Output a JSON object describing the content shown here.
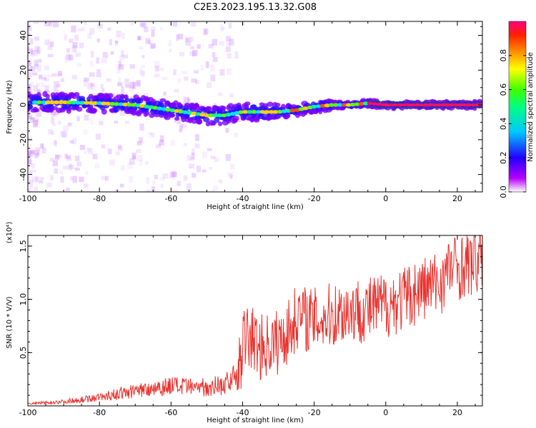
{
  "title": "C2E3.2023.195.13.32.G08",
  "chart_data": [
    {
      "type": "heatmap",
      "xlabel": "Height of straight line (km)",
      "ylabel": "Frequency (Hz)",
      "xlim": [
        -100,
        27
      ],
      "ylim": [
        -50,
        48
      ],
      "xticks": [
        "-100",
        "-80",
        "-60",
        "-40",
        "-20",
        "0",
        "20"
      ],
      "yticks": [
        "40",
        "20",
        "0",
        "-20",
        "-40"
      ],
      "trace": {
        "x": [
          -100,
          -90,
          -80,
          -70,
          -60,
          -50,
          -45,
          -40,
          -35,
          -30,
          -25,
          -20,
          -15,
          -10,
          -5,
          0,
          10,
          20,
          27
        ],
        "freq": [
          1.5,
          1.5,
          1,
          0,
          -3,
          -6,
          -6,
          -4,
          -4,
          -4,
          -3,
          -1,
          0,
          0,
          1,
          0,
          0,
          0,
          0
        ]
      },
      "colorbar": {
        "label": "Normalized spectral amplitude",
        "ticks": [
          "0.0",
          "0.2",
          "0.4",
          "0.6",
          "0.8"
        ],
        "range": [
          0,
          1
        ]
      }
    },
    {
      "type": "line",
      "xlabel": "Height of straight line (km)",
      "ylabel": "SNR (10 * V/V)",
      "scale_label": "(x10⁴)",
      "xlim": [
        -100,
        27
      ],
      "ylim": [
        0,
        1.6
      ],
      "xticks": [
        "-100",
        "-80",
        "-60",
        "-40",
        "-20",
        "0",
        "20"
      ],
      "yticks": [
        "0.5",
        "1.0",
        "1.5"
      ],
      "color": "#e8322e",
      "series": {
        "x": [
          -100,
          -95,
          -90,
          -85,
          -80,
          -75,
          -70,
          -65,
          -60,
          -55,
          -50,
          -45,
          -41,
          -40,
          -38,
          -35,
          -30,
          -26,
          -25,
          -20,
          -15,
          -10,
          -5,
          0,
          5,
          10,
          15,
          18,
          20,
          25,
          27
        ],
        "y": [
          0.02,
          0.03,
          0.04,
          0.06,
          0.08,
          0.11,
          0.14,
          0.17,
          0.19,
          0.17,
          0.18,
          0.2,
          0.3,
          0.6,
          0.65,
          0.55,
          0.6,
          0.75,
          0.85,
          0.8,
          0.85,
          0.9,
          0.9,
          0.95,
          1.0,
          1.1,
          1.15,
          1.3,
          1.3,
          1.35,
          1.38
        ]
      }
    }
  ]
}
